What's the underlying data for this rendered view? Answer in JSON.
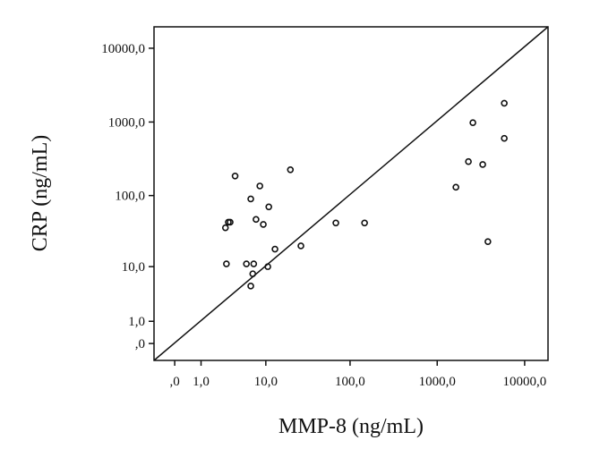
{
  "chart_data": {
    "type": "scatter",
    "x_label": "MMP-8 (ng/mL)",
    "y_label": "CRP (ng/mL)",
    "xscale": "log1p",
    "yscale": "log1p",
    "xlim": [
      -0.42,
      18500
    ],
    "ylim": [
      -0.41,
      19500
    ],
    "xticks": [
      {
        "value": 0,
        "label": ",0"
      },
      {
        "value": 1,
        "label": "1,0"
      },
      {
        "value": 10,
        "label": "10,0"
      },
      {
        "value": 100,
        "label": "100,0"
      },
      {
        "value": 1000,
        "label": "1000,0"
      },
      {
        "value": 10000,
        "label": "10000,0"
      }
    ],
    "yticks": [
      {
        "value": 0,
        "label": ",0"
      },
      {
        "value": 1,
        "label": "1,0"
      },
      {
        "value": 10,
        "label": "10,0"
      },
      {
        "value": 100,
        "label": "100,0"
      },
      {
        "value": 1000,
        "label": "1000,0"
      },
      {
        "value": 10000,
        "label": "10000,0"
      }
    ],
    "color": "#111111",
    "x": [
      2.9,
      2.8,
      3.1,
      3.3,
      3.9,
      5.6,
      6.4,
      7.0,
      6.8,
      6.4,
      7.5,
      8.4,
      9.3,
      10.9,
      10.6,
      13,
      20,
      26.7,
      68.5,
      147,
      1637,
      2276,
      2560,
      3316,
      3800,
      5850,
      5850
    ],
    "y": [
      11,
      36,
      43,
      43,
      185,
      11,
      90,
      11,
      7.8,
      5,
      47,
      135,
      40,
      70,
      10,
      18,
      225,
      20,
      42,
      42,
      130,
      290,
      980,
      265,
      23,
      1800,
      600
    ]
  }
}
